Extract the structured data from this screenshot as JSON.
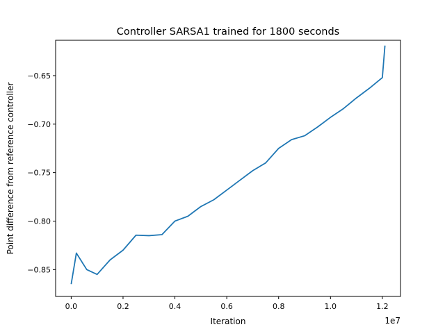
{
  "chart_data": {
    "type": "line",
    "title": "Controller SARSA1 trained for 1800 seconds",
    "xlabel": "Iteration",
    "ylabel": "Point difference from reference controller",
    "x_offset_label": "1e7",
    "xlim": [
      -0.6,
      12.7
    ],
    "ylim": [
      -0.8777,
      -0.6135
    ],
    "x_ticks": [
      0.0,
      0.2,
      0.4,
      0.6,
      0.8,
      1.0,
      1.2
    ],
    "x_tick_labels": [
      "0.0",
      "0.2",
      "0.4",
      "0.6",
      "0.8",
      "1.0",
      "1.2"
    ],
    "y_ticks": [
      -0.85,
      -0.8,
      -0.75,
      -0.7,
      -0.65
    ],
    "y_tick_labels": [
      "−0.85",
      "−0.80",
      "−0.75",
      "−0.70",
      "−0.65"
    ],
    "grid": false,
    "legend": "none",
    "series": [
      {
        "color": "#1f77b4",
        "x": [
          0.0,
          0.2,
          0.6,
          1.0,
          1.5,
          2.0,
          2.5,
          3.0,
          3.5,
          4.0,
          4.5,
          5.0,
          5.5,
          6.0,
          6.5,
          7.0,
          7.5,
          8.0,
          8.5,
          9.0,
          9.5,
          10.0,
          10.5,
          11.0,
          11.5,
          12.0,
          12.1
        ],
        "y": [
          -0.865,
          -0.833,
          -0.85,
          -0.855,
          -0.84,
          -0.83,
          -0.8145,
          -0.815,
          -0.814,
          -0.8,
          -0.795,
          -0.785,
          -0.778,
          -0.768,
          -0.758,
          -0.748,
          -0.74,
          -0.725,
          -0.716,
          -0.712,
          -0.703,
          -0.693,
          -0.684,
          -0.673,
          -0.663,
          -0.652,
          -0.619
        ]
      }
    ]
  }
}
